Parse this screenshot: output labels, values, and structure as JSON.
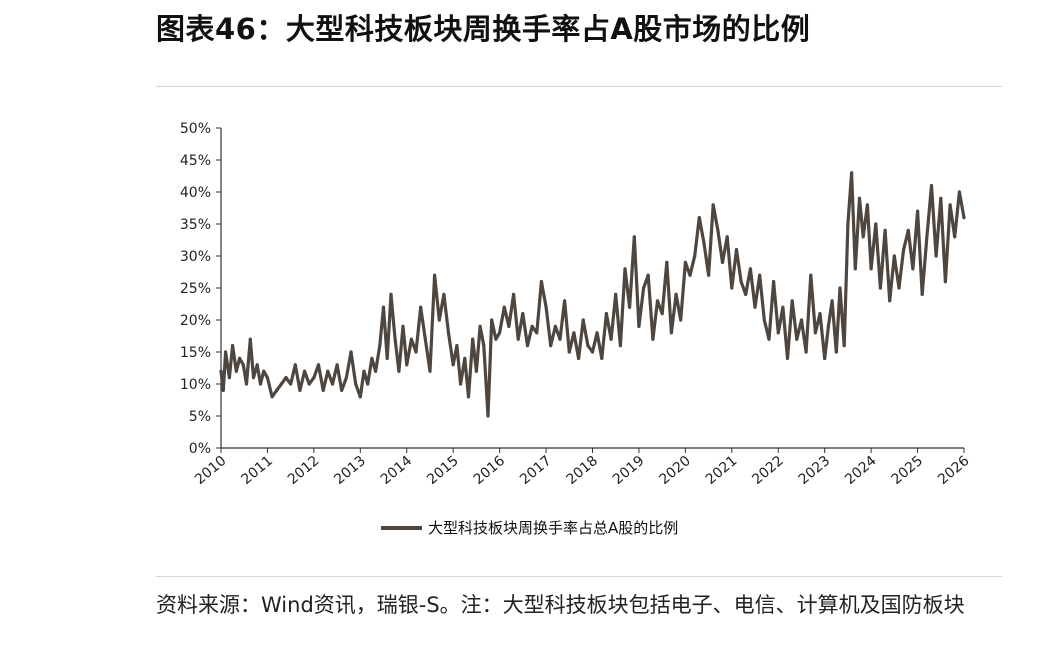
{
  "header": {
    "title": "图表46：大型科技板块周换手率占A股市场的比例"
  },
  "footer": {
    "source": "资料来源：Wind资讯，瑞银-S。注：大型科技板块包括电子、电信、计算机及国防板块"
  },
  "colors": {
    "series": "#4f463f",
    "axis": "#333333",
    "rule": "#d6d6d6"
  },
  "chart_data": {
    "type": "line",
    "xlim": [
      2010,
      2026
    ],
    "ylim": [
      0,
      50
    ],
    "yticks": [
      "0%",
      "5%",
      "10%",
      "15%",
      "20%",
      "25%",
      "30%",
      "35%",
      "40%",
      "45%",
      "50%"
    ],
    "xticks": [
      "2010",
      "2011",
      "2012",
      "2013",
      "2014",
      "2015",
      "2016",
      "2017",
      "2018",
      "2019",
      "2020",
      "2021",
      "2022",
      "2023",
      "2024",
      "2025",
      "2026"
    ],
    "legend": {
      "position": "bottom"
    },
    "series": [
      {
        "name": "大型科技板块周换手率占总A股的比例",
        "x": [
          2010.0,
          2010.05,
          2010.1,
          2010.18,
          2010.25,
          2010.33,
          2010.4,
          2010.48,
          2010.55,
          2010.63,
          2010.7,
          2010.78,
          2010.85,
          2010.92,
          2011.0,
          2011.1,
          2011.2,
          2011.3,
          2011.4,
          2011.5,
          2011.6,
          2011.7,
          2011.8,
          2011.9,
          2012.0,
          2012.1,
          2012.2,
          2012.3,
          2012.4,
          2012.5,
          2012.6,
          2012.7,
          2012.8,
          2012.9,
          2013.0,
          2013.08,
          2013.16,
          2013.25,
          2013.33,
          2013.42,
          2013.5,
          2013.58,
          2013.66,
          2013.75,
          2013.83,
          2013.92,
          2014.0,
          2014.1,
          2014.2,
          2014.3,
          2014.4,
          2014.5,
          2014.6,
          2014.7,
          2014.8,
          2014.9,
          2015.0,
          2015.08,
          2015.16,
          2015.25,
          2015.33,
          2015.42,
          2015.5,
          2015.58,
          2015.66,
          2015.75,
          2015.83,
          2015.92,
          2016.0,
          2016.1,
          2016.2,
          2016.3,
          2016.4,
          2016.5,
          2016.6,
          2016.7,
          2016.8,
          2016.9,
          2017.0,
          2017.1,
          2017.2,
          2017.3,
          2017.4,
          2017.5,
          2017.6,
          2017.7,
          2017.8,
          2017.9,
          2018.0,
          2018.1,
          2018.2,
          2018.3,
          2018.4,
          2018.5,
          2018.6,
          2018.7,
          2018.8,
          2018.9,
          2019.0,
          2019.1,
          2019.2,
          2019.3,
          2019.4,
          2019.5,
          2019.6,
          2019.7,
          2019.8,
          2019.9,
          2020.0,
          2020.1,
          2020.2,
          2020.3,
          2020.4,
          2020.5,
          2020.6,
          2020.7,
          2020.8,
          2020.9,
          2021.0,
          2021.1,
          2021.2,
          2021.3,
          2021.4,
          2021.5,
          2021.6,
          2021.7,
          2021.8,
          2021.9,
          2022.0,
          2022.1,
          2022.2,
          2022.3,
          2022.4,
          2022.5,
          2022.6,
          2022.7,
          2022.8,
          2022.9,
          2023.0,
          2023.08,
          2023.16,
          2023.25,
          2023.33,
          2023.42,
          2023.5,
          2023.58,
          2023.66,
          2023.75,
          2023.83,
          2023.92,
          2024.0,
          2024.1,
          2024.2,
          2024.3,
          2024.4,
          2024.5,
          2024.6,
          2024.7,
          2024.8,
          2024.9,
          2025.0,
          2025.1,
          2025.2,
          2025.3,
          2025.4,
          2025.5,
          2025.6,
          2025.7,
          2025.8,
          2025.9,
          2026.0
        ],
        "y": [
          12,
          9,
          15,
          11,
          16,
          12,
          14,
          13,
          10,
          17,
          11,
          13,
          10,
          12,
          11,
          8,
          9,
          10,
          11,
          10,
          13,
          9,
          12,
          10,
          11,
          13,
          9,
          12,
          10,
          13,
          9,
          11,
          15,
          10,
          8,
          12,
          10,
          14,
          12,
          16,
          22,
          14,
          24,
          17,
          12,
          19,
          13,
          17,
          15,
          22,
          17,
          12,
          27,
          20,
          24,
          18,
          13,
          16,
          10,
          14,
          8,
          17,
          12,
          19,
          16,
          5,
          20,
          17,
          18,
          22,
          19,
          24,
          17,
          21,
          16,
          19,
          18,
          26,
          22,
          16,
          19,
          17,
          23,
          15,
          18,
          14,
          20,
          16,
          15,
          18,
          14,
          21,
          17,
          24,
          16,
          28,
          22,
          33,
          19,
          25,
          27,
          17,
          23,
          21,
          29,
          18,
          24,
          20,
          29,
          27,
          30,
          36,
          32,
          27,
          38,
          34,
          29,
          33,
          25,
          31,
          26,
          24,
          28,
          22,
          27,
          20,
          17,
          26,
          18,
          22,
          14,
          23,
          17,
          20,
          15,
          27,
          18,
          21,
          14,
          19,
          23,
          15,
          25,
          16,
          35,
          43,
          28,
          39,
          33,
          38,
          28,
          35,
          25,
          34,
          23,
          30,
          25,
          31,
          34,
          28,
          37,
          24,
          33,
          41,
          30,
          39,
          26,
          38,
          33,
          40,
          36
        ],
        "point_count": 171
      }
    ]
  }
}
